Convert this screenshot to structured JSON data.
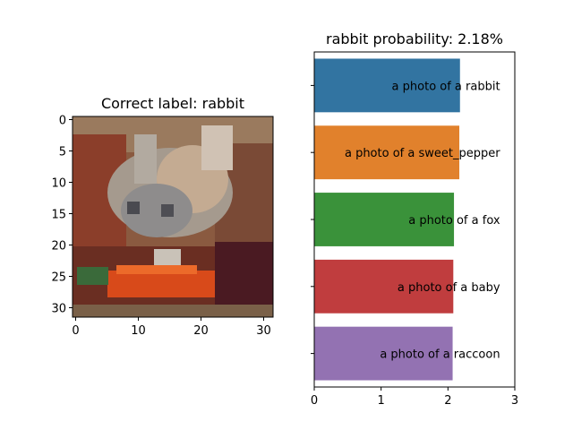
{
  "colors": {
    "background": "#ffffff",
    "axis": "#000000",
    "series": [
      "#3274a1",
      "#e1812c",
      "#3a923a",
      "#c03d3e",
      "#9372b2"
    ]
  },
  "chart_data": [
    {
      "type": "heatmap",
      "title": "Correct label: rabbit",
      "description_of_pixels": "32x32 CIFAR image of a rabbit with a carrot",
      "xlim": [
        -0.5,
        31.5
      ],
      "ylim": [
        31.5,
        -0.5
      ],
      "x_ticks": [
        0,
        10,
        20,
        30
      ],
      "y_ticks": [
        0,
        5,
        10,
        15,
        20,
        25,
        30
      ],
      "xlabel": "",
      "ylabel": ""
    },
    {
      "type": "bar",
      "orientation": "horizontal",
      "title": "rabbit probability: 2.18%",
      "categories": [
        "a photo of a rabbit",
        "a photo of a sweet_pepper",
        "a photo of a fox",
        "a photo of a baby",
        "a photo of a raccoon"
      ],
      "values": [
        2.18,
        2.17,
        2.09,
        2.08,
        2.07
      ],
      "xlim": [
        0,
        3
      ],
      "x_ticks": [
        0,
        1,
        2,
        3
      ],
      "xlabel": "",
      "ylabel": "",
      "grid": false,
      "legend": "none"
    }
  ]
}
